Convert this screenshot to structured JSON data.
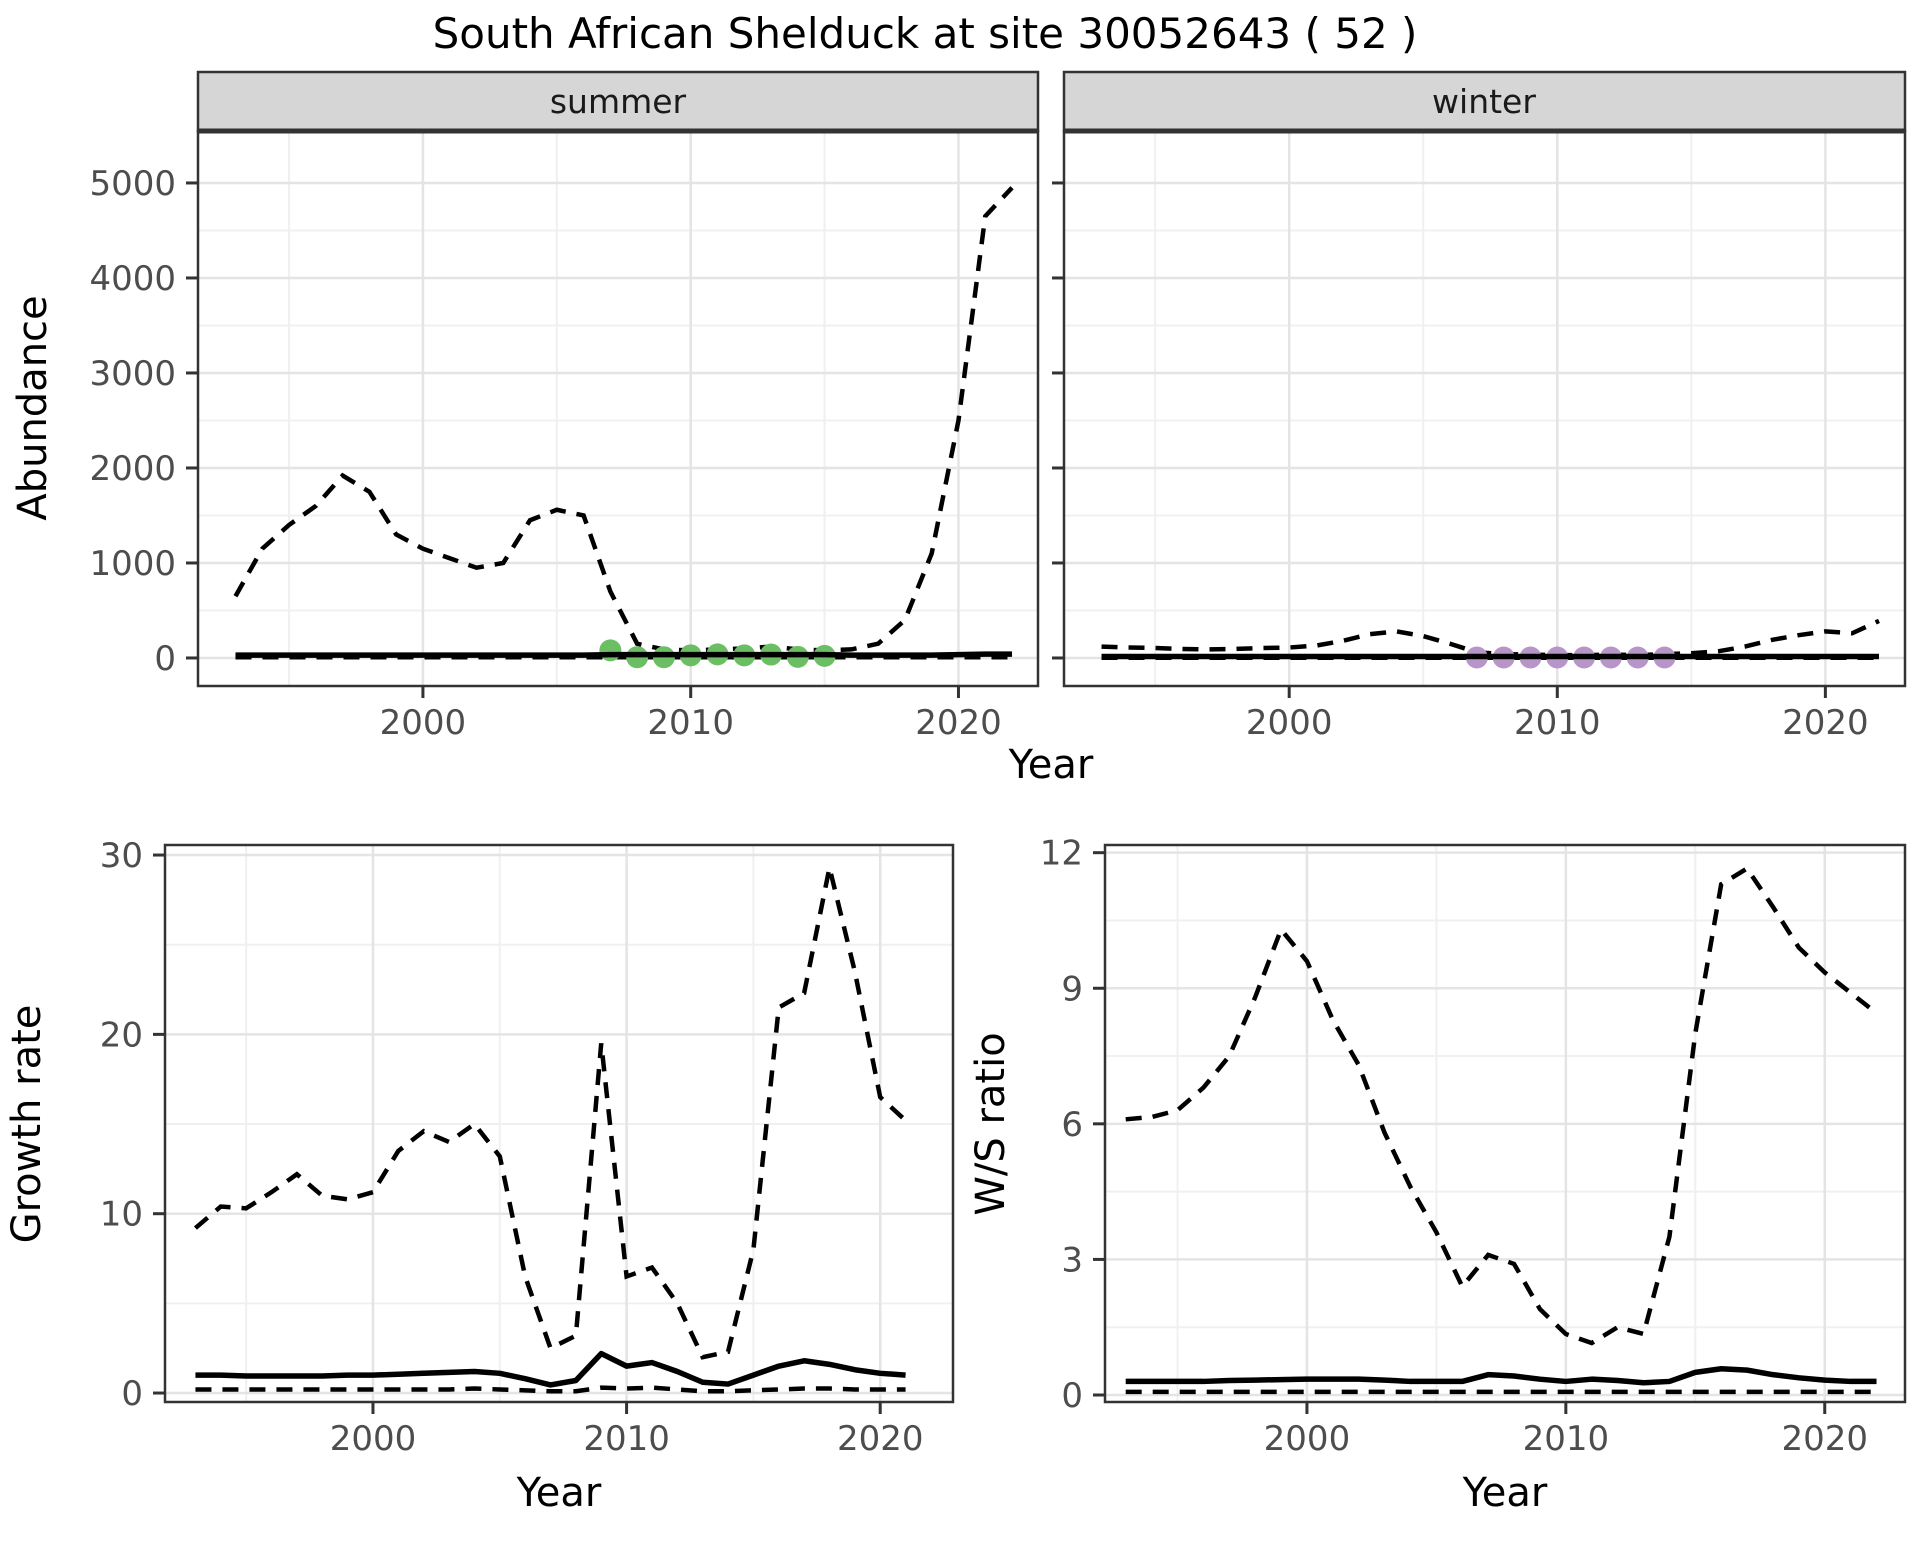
{
  "title": "South African Shelduck at site 30052643 ( 52 )",
  "colors": {
    "summer_points": "#6BBE63",
    "winter_points": "#B795C8",
    "line": "#000000",
    "strip_bg": "#D6D6D6",
    "panel_border": "#333333",
    "grid_major": "#E4E4E4",
    "grid_minor": "#F0F0F0",
    "tick_text": "#4D4D4D",
    "tick_mark": "#333333"
  },
  "chart_data": [
    {
      "type": "line",
      "facet": "summer",
      "xlabel": "Year",
      "ylabel": "Abundance",
      "xlim": [
        1991.6,
        2022.97
      ],
      "ylim": [
        -295,
        5547
      ],
      "xticks": [
        2000,
        2010,
        2020
      ],
      "xticks_minor": [
        1995,
        2005,
        2015
      ],
      "yticks": [
        0,
        1000,
        2000,
        3000,
        4000,
        5000
      ],
      "yticks_minor": [
        500,
        1500,
        2500,
        3500,
        4500
      ],
      "x": [
        1993,
        1994,
        1995,
        1996,
        1997,
        1998,
        1999,
        2000,
        2001,
        2002,
        2003,
        2004,
        2005,
        2006,
        2007,
        2008,
        2009,
        2010,
        2011,
        2012,
        2013,
        2014,
        2015,
        2016,
        2017,
        2018,
        2019,
        2020,
        2021,
        2022
      ],
      "series": [
        {
          "name": "upper_95ci",
          "style": "dashed",
          "values": [
            650,
            1150,
            1400,
            1600,
            1920,
            1750,
            1300,
            1150,
            1050,
            950,
            1000,
            1450,
            1560,
            1500,
            700,
            150,
            90,
            80,
            90,
            100,
            120,
            90,
            80,
            90,
            150,
            400,
            1100,
            2500,
            4650,
            4950
          ]
        },
        {
          "name": "model_fit",
          "style": "solid",
          "values": [
            30,
            30,
            30,
            30,
            30,
            30,
            30,
            30,
            30,
            30,
            30,
            30,
            30,
            30,
            35,
            35,
            35,
            35,
            35,
            35,
            35,
            35,
            35,
            30,
            30,
            30,
            30,
            35,
            40,
            40
          ]
        },
        {
          "name": "lower_95ci",
          "style": "dashed",
          "values": [
            8,
            8,
            8,
            8,
            8,
            8,
            8,
            8,
            8,
            8,
            8,
            8,
            8,
            8,
            8,
            8,
            8,
            8,
            8,
            8,
            8,
            8,
            8,
            8,
            8,
            8,
            8,
            8,
            8,
            8
          ]
        }
      ],
      "points": {
        "name": "summer_counts",
        "color_key": "summer_points",
        "x": [
          2007,
          2008,
          2009,
          2010,
          2011,
          2012,
          2013,
          2014,
          2015
        ],
        "y": [
          80,
          8,
          8,
          28,
          38,
          28,
          36,
          12,
          22
        ]
      }
    },
    {
      "type": "line",
      "facet": "winter",
      "xlabel": "Year",
      "ylabel": "Abundance",
      "xlim": [
        1991.6,
        2022.97
      ],
      "ylim": [
        -295,
        5547
      ],
      "xticks": [
        2000,
        2010,
        2020
      ],
      "xticks_minor": [
        1995,
        2005,
        2015
      ],
      "yticks": [
        0,
        1000,
        2000,
        3000,
        4000,
        5000
      ],
      "yticks_minor": [
        500,
        1500,
        2500,
        3500,
        4500
      ],
      "x": [
        1993,
        1994,
        1995,
        1996,
        1997,
        1998,
        1999,
        2000,
        2001,
        2002,
        2003,
        2004,
        2005,
        2006,
        2007,
        2008,
        2009,
        2010,
        2011,
        2012,
        2013,
        2014,
        2015,
        2016,
        2017,
        2018,
        2019,
        2020,
        2021,
        2022
      ],
      "series": [
        {
          "name": "upper_95ci",
          "style": "dashed",
          "values": [
            120,
            110,
            105,
            95,
            90,
            95,
            105,
            110,
            130,
            180,
            250,
            280,
            230,
            150,
            60,
            40,
            35,
            30,
            30,
            35,
            30,
            40,
            50,
            70,
            120,
            190,
            240,
            280,
            260,
            390
          ]
        },
        {
          "name": "model_fit",
          "style": "solid",
          "values": [
            15,
            15,
            15,
            15,
            15,
            15,
            15,
            15,
            15,
            15,
            15,
            15,
            15,
            15,
            15,
            15,
            15,
            15,
            15,
            15,
            15,
            15,
            15,
            15,
            15,
            15,
            15,
            15,
            15,
            15
          ]
        },
        {
          "name": "lower_95ci",
          "style": "dashed",
          "values": [
            3,
            3,
            3,
            3,
            3,
            3,
            3,
            3,
            3,
            3,
            3,
            3,
            3,
            3,
            3,
            3,
            3,
            3,
            3,
            3,
            3,
            3,
            3,
            3,
            3,
            3,
            3,
            3,
            3,
            3
          ]
        }
      ],
      "points": {
        "name": "winter_counts",
        "color_key": "winter_points",
        "x": [
          2007,
          2008,
          2009,
          2010,
          2011,
          2012,
          2013,
          2014
        ],
        "y": [
          5,
          5,
          5,
          5,
          5,
          5,
          5,
          5
        ]
      }
    },
    {
      "type": "line",
      "facet": "",
      "xlabel": "Year",
      "ylabel": "Growth rate",
      "xlim": [
        1991.8,
        2022.87
      ],
      "ylim": [
        -0.5,
        30.56
      ],
      "xticks": [
        2000,
        2010,
        2020
      ],
      "xticks_minor": [
        1995,
        2005,
        2015
      ],
      "yticks": [
        0,
        10,
        20,
        30
      ],
      "yticks_minor": [
        5,
        15,
        25
      ],
      "x": [
        1993,
        1994,
        1995,
        1996,
        1997,
        1998,
        1999,
        2000,
        2001,
        2002,
        2003,
        2004,
        2005,
        2006,
        2007,
        2008,
        2009,
        2010,
        2011,
        2012,
        2013,
        2014,
        2015,
        2016,
        2017,
        2018,
        2019,
        2020,
        2021
      ],
      "series": [
        {
          "name": "upper_95ci",
          "style": "dashed",
          "values": [
            9.2,
            10.4,
            10.3,
            11.2,
            12.2,
            11.0,
            10.8,
            11.2,
            13.5,
            14.6,
            14.0,
            15.0,
            13.2,
            6.5,
            2.5,
            3.2,
            19.5,
            6.5,
            7.0,
            5.0,
            2.0,
            2.3,
            8.0,
            21.5,
            22.3,
            29.3,
            23.5,
            16.5,
            15.2
          ]
        },
        {
          "name": "model_fit",
          "style": "solid",
          "values": [
            1.0,
            1.0,
            0.95,
            0.95,
            0.95,
            0.95,
            1.0,
            1.0,
            1.05,
            1.1,
            1.15,
            1.2,
            1.1,
            0.8,
            0.45,
            0.7,
            2.2,
            1.5,
            1.7,
            1.2,
            0.6,
            0.5,
            1.0,
            1.5,
            1.8,
            1.6,
            1.3,
            1.1,
            1.0
          ]
        },
        {
          "name": "lower_95ci",
          "style": "dashed",
          "values": [
            0.2,
            0.2,
            0.2,
            0.2,
            0.2,
            0.2,
            0.2,
            0.2,
            0.2,
            0.2,
            0.2,
            0.25,
            0.2,
            0.15,
            0.1,
            0.1,
            0.3,
            0.25,
            0.3,
            0.2,
            0.1,
            0.1,
            0.15,
            0.2,
            0.25,
            0.25,
            0.2,
            0.2,
            0.2
          ]
        }
      ],
      "points": null
    },
    {
      "type": "line",
      "facet": "",
      "xlabel": "Year",
      "ylabel": "W/S ratio",
      "xlim": [
        1992.2,
        2023.1
      ],
      "ylim": [
        -0.155,
        12.17
      ],
      "xticks": [
        2000,
        2010,
        2020
      ],
      "xticks_minor": [
        1995,
        2005,
        2015
      ],
      "yticks": [
        0,
        3,
        6,
        9,
        12
      ],
      "yticks_minor": [
        1.5,
        4.5,
        7.5,
        10.5
      ],
      "x": [
        1993,
        1994,
        1995,
        1996,
        1997,
        1998,
        1999,
        2000,
        2001,
        2002,
        2003,
        2004,
        2005,
        2006,
        2007,
        2008,
        2009,
        2010,
        2011,
        2012,
        2013,
        2014,
        2015,
        2016,
        2017,
        2018,
        2019,
        2020,
        2021,
        2022
      ],
      "series": [
        {
          "name": "upper_95ci",
          "style": "dashed",
          "values": [
            6.1,
            6.15,
            6.3,
            6.8,
            7.5,
            8.8,
            10.3,
            9.6,
            8.3,
            7.3,
            5.8,
            4.6,
            3.6,
            2.4,
            3.1,
            2.9,
            1.9,
            1.35,
            1.15,
            1.5,
            1.35,
            3.5,
            8.0,
            11.3,
            11.65,
            10.8,
            9.9,
            9.35,
            8.9,
            8.45
          ]
        },
        {
          "name": "model_fit",
          "style": "solid",
          "values": [
            0.3,
            0.3,
            0.3,
            0.3,
            0.32,
            0.33,
            0.34,
            0.35,
            0.35,
            0.35,
            0.33,
            0.3,
            0.3,
            0.3,
            0.45,
            0.42,
            0.35,
            0.3,
            0.35,
            0.32,
            0.27,
            0.3,
            0.5,
            0.58,
            0.55,
            0.45,
            0.38,
            0.33,
            0.3,
            0.3
          ]
        },
        {
          "name": "lower_95ci",
          "style": "dashed",
          "values": [
            0.07,
            0.07,
            0.07,
            0.07,
            0.07,
            0.07,
            0.07,
            0.07,
            0.07,
            0.07,
            0.07,
            0.07,
            0.07,
            0.07,
            0.07,
            0.07,
            0.07,
            0.07,
            0.07,
            0.07,
            0.07,
            0.07,
            0.07,
            0.07,
            0.07,
            0.07,
            0.07,
            0.07,
            0.07,
            0.07
          ]
        }
      ],
      "points": null
    }
  ]
}
